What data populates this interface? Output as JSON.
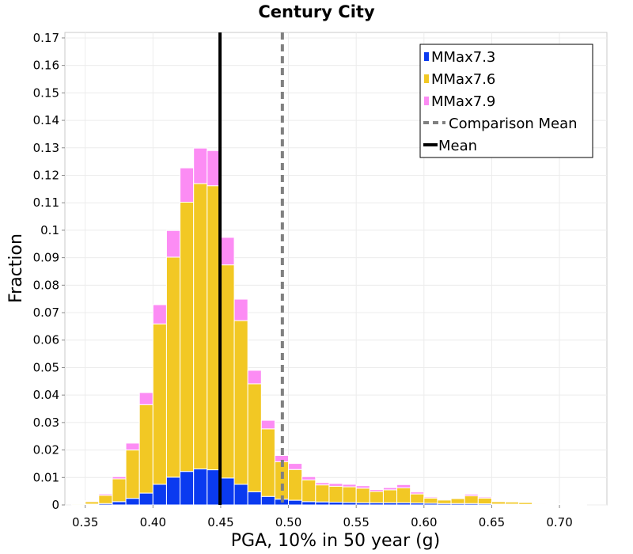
{
  "chart_data": {
    "type": "bar",
    "stacked": true,
    "title": "Century City",
    "xlabel": "PGA, 10% in 50 year (g)",
    "ylabel": "Fraction",
    "xlim": [
      0.335,
      0.735
    ],
    "ylim": [
      0,
      0.172
    ],
    "grid": true,
    "legend_position": "top-right",
    "x_ticks": [
      0.35,
      0.4,
      0.45,
      0.5,
      0.55,
      0.6,
      0.65,
      0.7
    ],
    "x_tick_labels": [
      "0.35",
      "0.40",
      "0.45",
      "0.50",
      "0.55",
      "0.60",
      "0.65",
      "0.70"
    ],
    "y_ticks": [
      0,
      0.01,
      0.02,
      0.03,
      0.04,
      0.05,
      0.06,
      0.07,
      0.08,
      0.09,
      0.1,
      0.11,
      0.12,
      0.13,
      0.14,
      0.15,
      0.16,
      0.17
    ],
    "y_tick_labels": [
      "0",
      "0.01",
      "0.02",
      "0.03",
      "0.04",
      "0.05",
      "0.06",
      "0.07",
      "0.08",
      "0.09",
      "0.1",
      "0.11",
      "0.12",
      "0.13",
      "0.14",
      "0.15",
      "0.16",
      "0.17"
    ],
    "bin_width": 0.01,
    "bins": [
      0.345,
      0.355,
      0.365,
      0.375,
      0.385,
      0.395,
      0.405,
      0.415,
      0.425,
      0.435,
      0.445,
      0.455,
      0.465,
      0.475,
      0.485,
      0.495,
      0.505,
      0.515,
      0.525,
      0.535,
      0.545,
      0.555,
      0.565,
      0.575,
      0.585,
      0.595,
      0.605,
      0.615,
      0.625,
      0.635,
      0.645,
      0.655,
      0.665,
      0.675,
      0.685,
      0.695,
      0.705,
      0.715
    ],
    "series": [
      {
        "name": "MMax7.3",
        "color": "#0a3af0",
        "values": [
          0.0001,
          0.0003,
          0.0005,
          0.0012,
          0.0024,
          0.0043,
          0.0075,
          0.0101,
          0.0122,
          0.0131,
          0.0128,
          0.0098,
          0.0075,
          0.0048,
          0.0031,
          0.0021,
          0.0017,
          0.0012,
          0.0011,
          0.001,
          0.0009,
          0.0008,
          0.0008,
          0.0008,
          0.0008,
          0.0007,
          0.0006,
          0.0005,
          0.0005,
          0.0005,
          0.0004,
          0.0003,
          0.0003,
          0.0002,
          0.0002,
          0.0001,
          0.0001,
          0.0001
        ]
      },
      {
        "name": "MMax7.6",
        "color": "#f2c824",
        "values": [
          0.0003,
          0.0009,
          0.003,
          0.0083,
          0.0176,
          0.0322,
          0.0584,
          0.0801,
          0.098,
          0.1039,
          0.1034,
          0.0776,
          0.0596,
          0.0393,
          0.0246,
          0.0136,
          0.0112,
          0.0079,
          0.0062,
          0.0058,
          0.0057,
          0.0053,
          0.0041,
          0.0047,
          0.0054,
          0.0033,
          0.0019,
          0.0013,
          0.0018,
          0.0028,
          0.0021,
          0.0009,
          0.0008,
          0.0007,
          0.0003,
          0.0002,
          0.0001,
          0.0001
        ]
      },
      {
        "name": "MMax7.9",
        "color": "#fc8cf4",
        "values": [
          0.0001,
          0.0003,
          0.0005,
          0.0008,
          0.0025,
          0.0044,
          0.007,
          0.0097,
          0.0125,
          0.0129,
          0.0128,
          0.01,
          0.0078,
          0.0049,
          0.0031,
          0.0023,
          0.0022,
          0.0012,
          0.0008,
          0.001,
          0.0009,
          0.0009,
          0.0007,
          0.0008,
          0.0012,
          0.0007,
          0.0004,
          0.0003,
          0.0002,
          0.0006,
          0.0004,
          0.0002,
          0.0002,
          0.0002,
          0.0001,
          0.0001,
          0.0001,
          0.0001
        ]
      }
    ],
    "lines": [
      {
        "name": "Comparison Mean",
        "x": 0.4955,
        "color": "#808080",
        "style": "dashed"
      },
      {
        "name": "Mean",
        "x": 0.4495,
        "color": "#000000",
        "style": "solid"
      }
    ]
  }
}
